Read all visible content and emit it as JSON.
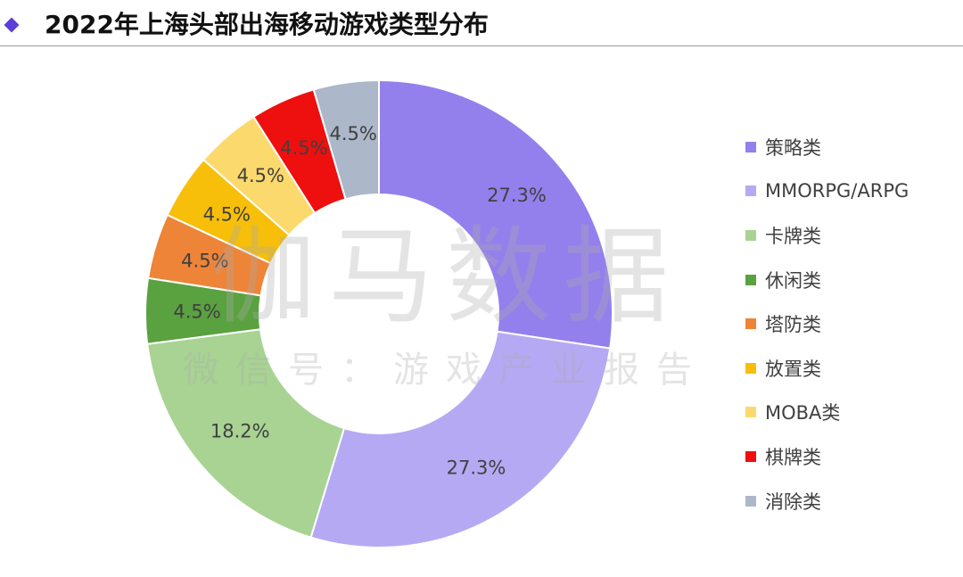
{
  "header": {
    "title": "2022年上海头部出海移动游戏类型分布"
  },
  "watermark": {
    "main": "伽马数据",
    "sub": "微信号：游戏产业报告"
  },
  "chart_data": {
    "type": "pie",
    "style": "donut",
    "title": "2022年上海头部出海移动游戏类型分布",
    "legend_position": "right",
    "slices": [
      {
        "label": "策略类",
        "value": 27.3,
        "display": "27.3%",
        "color": "#9480ec"
      },
      {
        "label": "MMORPG/ARPG",
        "value": 27.3,
        "display": "27.3%",
        "color": "#b6a9f3"
      },
      {
        "label": "卡牌类",
        "value": 18.2,
        "display": "18.2%",
        "color": "#a8d393"
      },
      {
        "label": "休闲类",
        "value": 4.5,
        "display": "4.5%",
        "color": "#5aa140"
      },
      {
        "label": "塔防类",
        "value": 4.5,
        "display": "4.5%",
        "color": "#ee8438"
      },
      {
        "label": "放置类",
        "value": 4.5,
        "display": "4.5%",
        "color": "#f7bf0a"
      },
      {
        "label": "MOBA类",
        "value": 4.5,
        "display": "4.5%",
        "color": "#fcd96d"
      },
      {
        "label": "棋牌类",
        "value": 4.5,
        "display": "4.5%",
        "color": "#ee0f0f"
      },
      {
        "label": "消除类",
        "value": 4.5,
        "display": "4.5%",
        "color": "#acb8c9"
      }
    ]
  }
}
